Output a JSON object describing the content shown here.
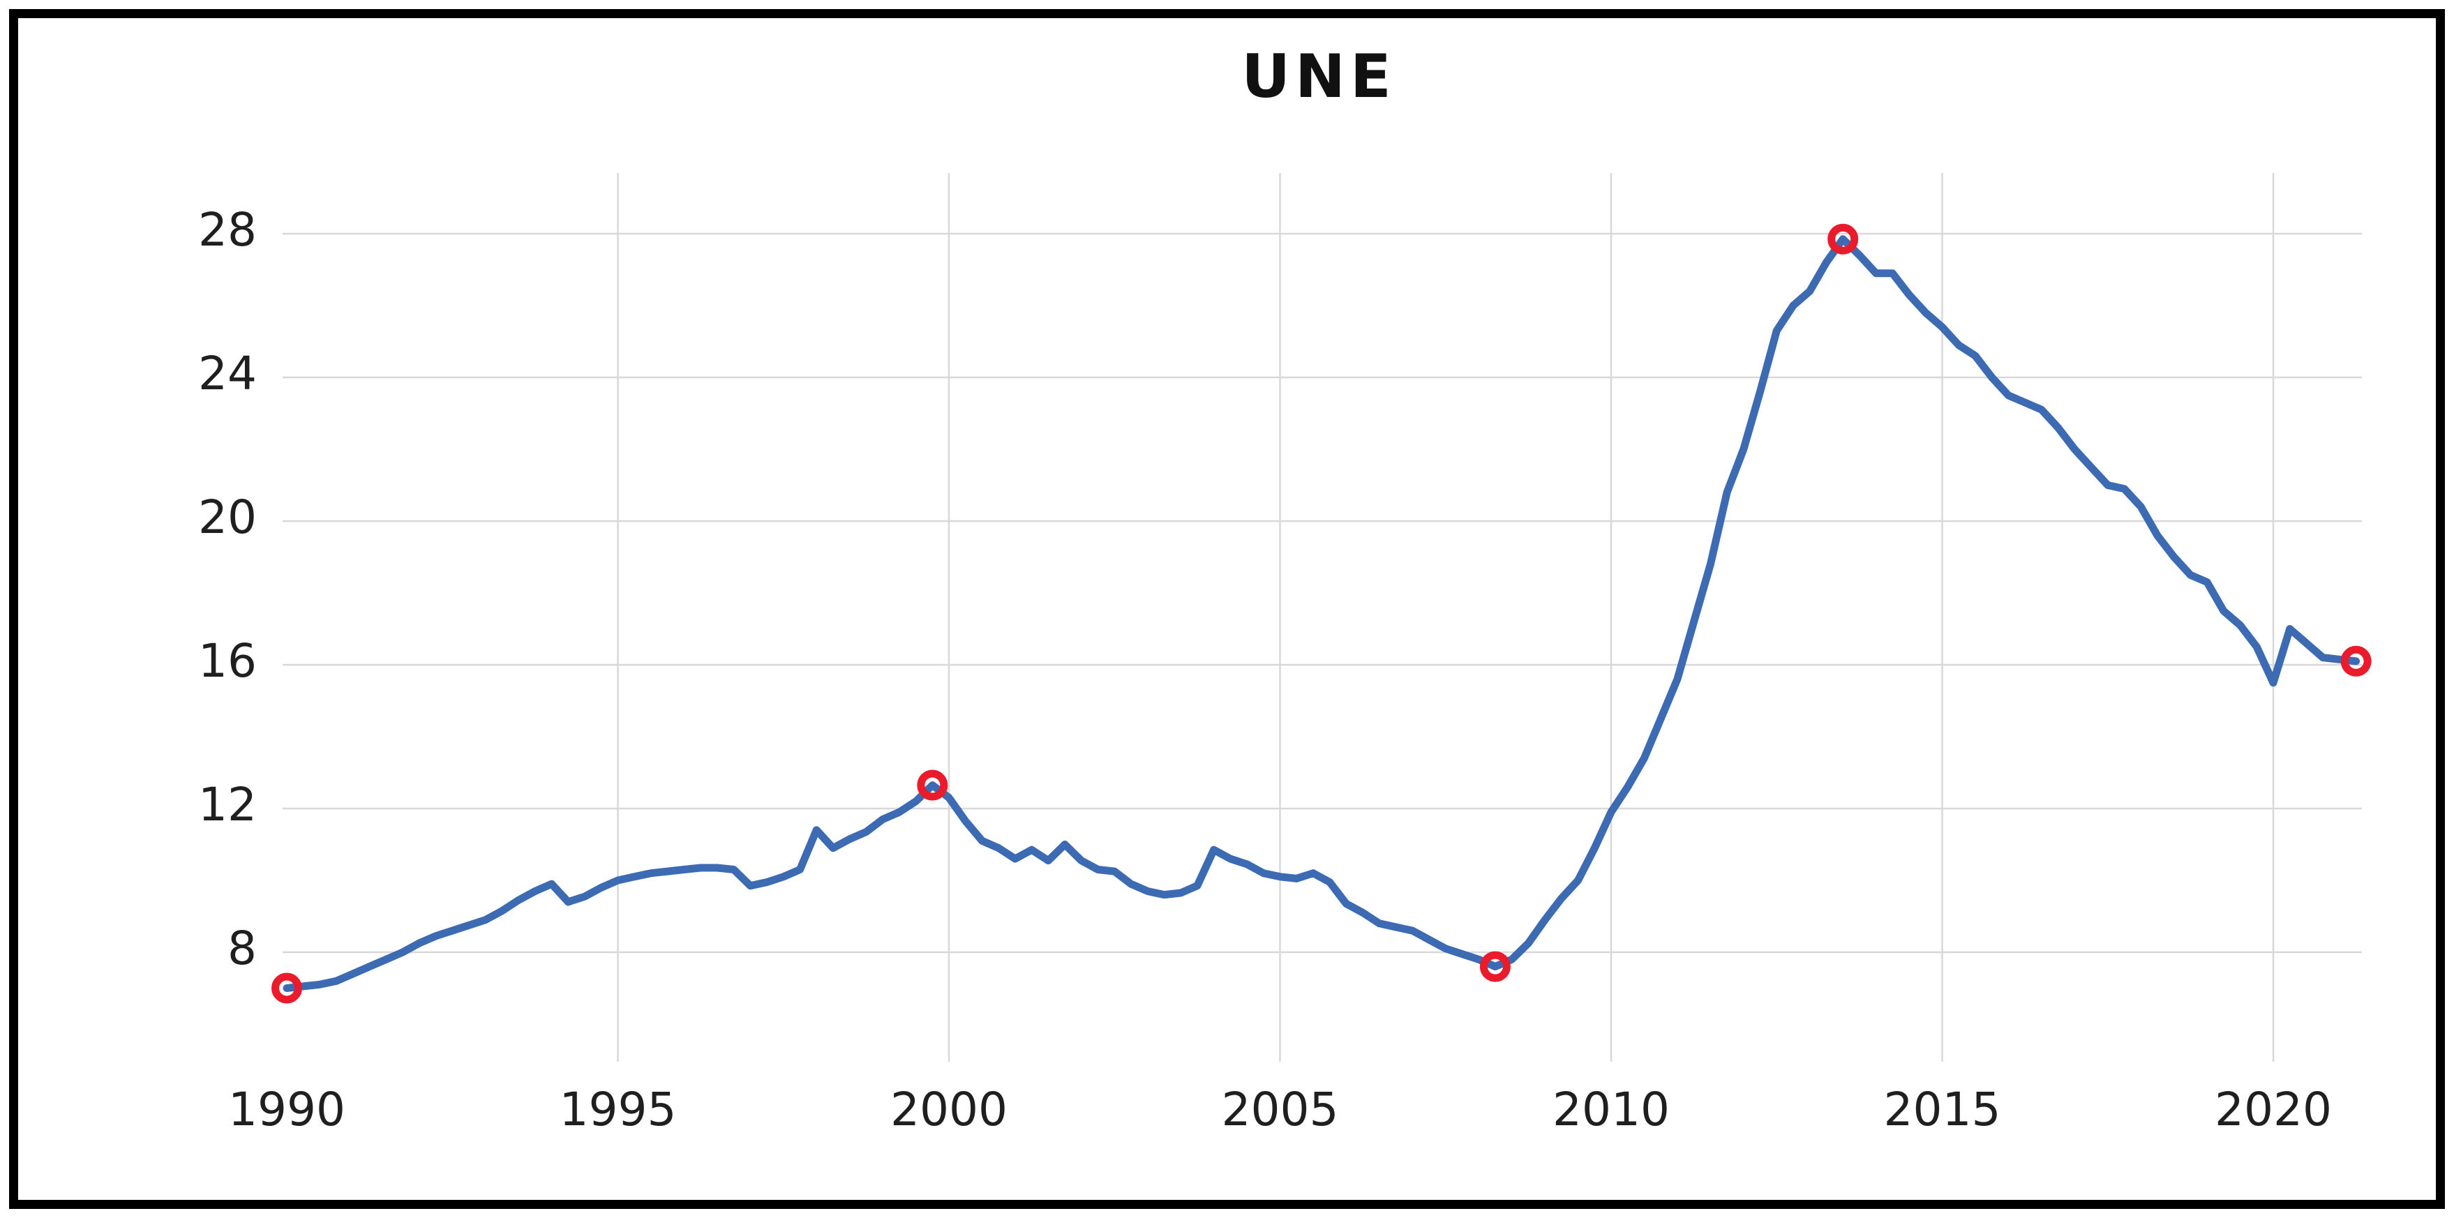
{
  "window": {
    "background": "#ffffff"
  },
  "colors": {
    "line": "#3C6BB3",
    "marker": "#EA1C2C",
    "grid": "#D8D8D8",
    "text": "#1F1F1F",
    "title": "#111111",
    "border": "#000000"
  },
  "chart_data": {
    "type": "line",
    "title": "UNE",
    "series_name": "UNE",
    "xlabel": "",
    "ylabel": "",
    "legend": "none",
    "grid": {
      "horizontal": true,
      "vertical": true
    },
    "xlim": [
      1989.9,
      2021.4
    ],
    "ylim": [
      4.9,
      29.7
    ],
    "x_ticks": {
      "values": [
        1990,
        1995,
        2000,
        2005,
        2010,
        2015,
        2020
      ],
      "labels": [
        "1990",
        "1995",
        "2000",
        "2005",
        "2010",
        "2015",
        "2020"
      ]
    },
    "y_ticks": {
      "values": [
        8,
        12,
        16,
        20,
        24,
        28
      ],
      "labels": [
        "8",
        "12",
        "16",
        "20",
        "24",
        "28"
      ]
    },
    "x_gridlines": [
      1995,
      2000,
      2005,
      2010,
      2015,
      2020
    ],
    "x": [
      1990,
      1990.25,
      1990.5,
      1990.75,
      1991,
      1991.25,
      1991.5,
      1991.75,
      1992,
      1992.25,
      1992.5,
      1992.75,
      1993,
      1993.25,
      1993.5,
      1993.75,
      1994,
      1994.25,
      1994.5,
      1994.75,
      1995,
      1995.25,
      1995.5,
      1995.75,
      1996,
      1996.25,
      1996.5,
      1996.75,
      1997,
      1997.25,
      1997.5,
      1997.75,
      1998,
      1998.25,
      1998.5,
      1998.75,
      1999,
      1999.25,
      1999.5,
      1999.75,
      2000,
      2000.25,
      2000.5,
      2000.75,
      2001,
      2001.25,
      2001.5,
      2001.75,
      2002,
      2002.25,
      2002.5,
      2002.75,
      2003,
      2003.25,
      2003.5,
      2003.75,
      2004,
      2004.25,
      2004.5,
      2004.75,
      2005,
      2005.25,
      2005.5,
      2005.75,
      2006,
      2006.25,
      2006.5,
      2006.75,
      2007,
      2007.25,
      2007.5,
      2007.75,
      2008,
      2008.25,
      2008.5,
      2008.75,
      2009,
      2009.25,
      2009.5,
      2009.75,
      2010,
      2010.25,
      2010.5,
      2010.75,
      2011,
      2011.25,
      2011.5,
      2011.75,
      2012,
      2012.25,
      2012.5,
      2012.75,
      2013,
      2013.25,
      2013.5,
      2013.75,
      2014,
      2014.25,
      2014.5,
      2014.75,
      2015,
      2015.25,
      2015.5,
      2015.75,
      2016,
      2016.25,
      2016.5,
      2016.75,
      2017,
      2017.25,
      2017.5,
      2017.75,
      2018,
      2018.25,
      2018.5,
      2018.75,
      2019,
      2019.25,
      2019.5,
      2019.75,
      2020,
      2020.25,
      2020.5,
      2020.75,
      2021,
      2021.25
    ],
    "values": [
      7,
      7.05,
      7.1,
      7.2,
      7.4,
      7.6,
      7.8,
      8,
      8.25,
      8.45,
      8.6,
      8.75,
      8.9,
      9.15,
      9.45,
      9.7,
      9.9,
      9.4,
      9.55,
      9.8,
      10,
      10.1,
      10.2,
      10.25,
      10.3,
      10.35,
      10.35,
      10.3,
      9.85,
      9.95,
      10.1,
      10.3,
      11.4,
      10.9,
      11.15,
      11.35,
      11.7,
      11.9,
      12.2,
      12.65,
      12.3,
      11.65,
      11.1,
      10.9,
      10.6,
      10.85,
      10.55,
      11,
      10.55,
      10.3,
      10.25,
      9.9,
      9.7,
      9.6,
      9.65,
      9.85,
      10.85,
      10.6,
      10.45,
      10.2,
      10.1,
      10.05,
      10.2,
      9.95,
      9.35,
      9.1,
      8.8,
      8.7,
      8.6,
      8.35,
      8.1,
      7.95,
      7.8,
      7.6,
      7.8,
      8.25,
      8.9,
      9.5,
      10,
      10.9,
      11.9,
      12.6,
      13.4,
      14.5,
      15.6,
      17.2,
      18.8,
      20.8,
      22,
      23.6,
      25.3,
      26,
      26.4,
      27.2,
      27.85,
      27.4,
      26.9,
      26.9,
      26.3,
      25.8,
      25.4,
      24.9,
      24.6,
      24,
      23.5,
      23.3,
      23.1,
      22.6,
      22,
      21.5,
      21,
      20.9,
      20.4,
      19.6,
      19,
      18.5,
      18.3,
      17.5,
      17.1,
      16.5,
      15.5,
      17,
      16.6,
      16.2,
      16.15,
      16.1
    ],
    "markers": [
      {
        "x": 1990,
        "value": 7
      },
      {
        "x": 1999.75,
        "value": 12.65
      },
      {
        "x": 2008.25,
        "value": 7.6
      },
      {
        "x": 2013.5,
        "value": 27.85
      },
      {
        "x": 2021.25,
        "value": 16.1
      }
    ],
    "marker_style": "red-ring"
  }
}
